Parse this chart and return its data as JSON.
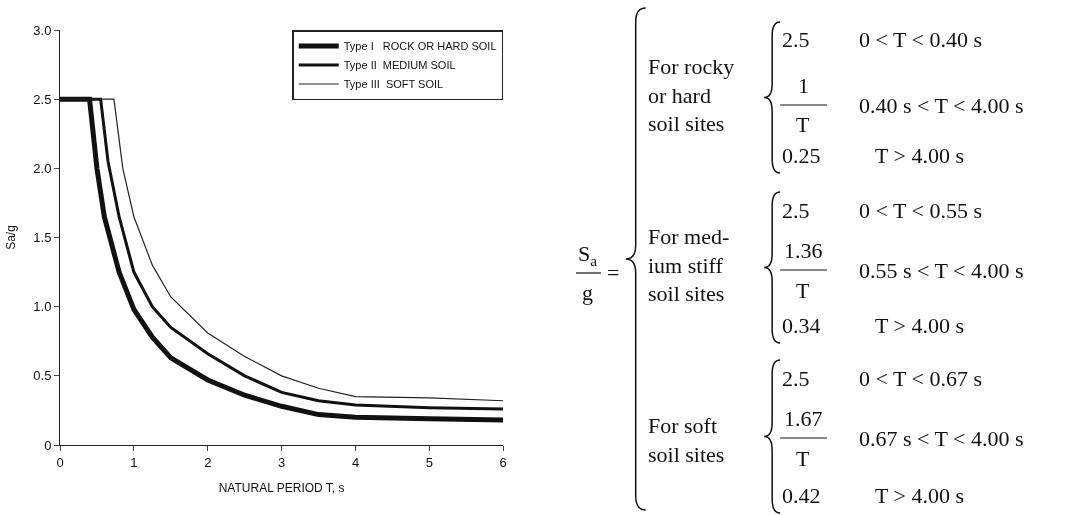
{
  "chart_data": {
    "type": "line",
    "xlabel": "NATURAL PERIOD T, s",
    "ylabel": "Sa/g",
    "xlim": [
      0,
      6
    ],
    "xticks": [
      0,
      1,
      2,
      3,
      4,
      5,
      6
    ],
    "ylim": [
      0,
      3
    ],
    "yticks": [
      0,
      {
        "value": 0.5,
        "label": "0.5"
      },
      {
        "value": 1,
        "label": "1.0"
      },
      {
        "value": 1.5,
        "label": "1.5"
      },
      {
        "value": 2,
        "label": "2.0"
      },
      {
        "value": 2.5,
        "label": "2.5"
      },
      {
        "value": 3,
        "label": "3.0"
      }
    ],
    "legend": "top right",
    "marker": "none",
    "line_style": "solid",
    "series": [
      {
        "name": "Type I   ROCK OR HARD SOIL",
        "color": "#111111",
        "x": [
          0,
          0.4,
          0.5,
          0.6,
          0.8,
          1,
          1.25,
          1.5,
          2,
          2.5,
          3,
          3.5,
          4,
          5,
          6
        ],
        "values": [
          2.5,
          2.5,
          2.0,
          1.65,
          1.25,
          0.98,
          0.78,
          0.63,
          0.47,
          0.36,
          0.28,
          0.22,
          0.2,
          0.19,
          0.18
        ]
      },
      {
        "name": "Type II  MEDIUM SOIL",
        "color": "#111111",
        "x": [
          0,
          0.55,
          0.65,
          0.8,
          1,
          1.25,
          1.5,
          2,
          2.5,
          3,
          3.5,
          4,
          5,
          6
        ],
        "values": [
          2.5,
          2.5,
          2.05,
          1.65,
          1.25,
          1.0,
          0.85,
          0.66,
          0.5,
          0.38,
          0.32,
          0.29,
          0.27,
          0.26
        ]
      },
      {
        "name": "Type III  SOFT SOIL",
        "color": "#222222",
        "x": [
          0,
          0.73,
          0.85,
          1,
          1.25,
          1.5,
          2,
          2.5,
          3,
          3.5,
          4,
          5,
          6
        ],
        "values": [
          2.5,
          2.5,
          2.0,
          1.65,
          1.3,
          1.07,
          0.81,
          0.64,
          0.5,
          0.41,
          0.35,
          0.34,
          0.32
        ]
      }
    ],
    "annotations": [
      "S$_{a}$",
      "g",
      "=",
      "For rocky\nor hard\nsoil sites",
      "2.5",
      "0 < T < 0.40 s",
      "1",
      "T",
      "0.40 s < T < 4.00 s",
      "0.25",
      "T > 4.00 s",
      "For med-\nium stiff\nsoil sites",
      "2.5",
      "0 < T < 0.55 s",
      "1.36",
      "T",
      "0.55 s < T < 4.00 s",
      "0.34",
      "T > 4.00 s",
      "For soft\nsoil sites",
      "2.5",
      "0 < T < 0.67 s",
      "1.67",
      "T",
      "0.67 s < T < 4.00 s",
      "0.42",
      "T > 4.00 s"
    ]
  }
}
